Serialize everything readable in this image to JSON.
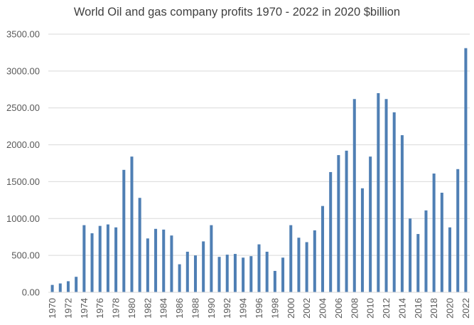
{
  "chart_data": {
    "type": "bar",
    "title": "World Oil and gas company profits 1970 - 2022 in 2020 $billion",
    "xlabel": "",
    "ylabel": "",
    "ylim": [
      0,
      3500
    ],
    "y_ticks": [
      "0.00",
      "500.00",
      "1000.00",
      "1500.00",
      "2000.00",
      "2500.00",
      "3000.00",
      "3500.00"
    ],
    "gridlines": true,
    "bar_color": "#4f7fb4",
    "grid_color": "#d9d9d9",
    "categories": [
      "1970",
      "1971",
      "1972",
      "1973",
      "1974",
      "1975",
      "1976",
      "1977",
      "1978",
      "1979",
      "1980",
      "1981",
      "1982",
      "1983",
      "1984",
      "1985",
      "1986",
      "1987",
      "1988",
      "1989",
      "1990",
      "1991",
      "1992",
      "1993",
      "1994",
      "1995",
      "1996",
      "1997",
      "1998",
      "1999",
      "2000",
      "2001",
      "2002",
      "2003",
      "2004",
      "2005",
      "2006",
      "2007",
      "2008",
      "2009",
      "2010",
      "2011",
      "2012",
      "2013",
      "2014",
      "2015",
      "2016",
      "2017",
      "2018",
      "2019",
      "2020",
      "2021",
      "2022"
    ],
    "tick_labels": [
      "1970",
      "1972",
      "1974",
      "1976",
      "1978",
      "1980",
      "1982",
      "1984",
      "1986",
      "1988",
      "1990",
      "1992",
      "1994",
      "1996",
      "1998",
      "2000",
      "2002",
      "2004",
      "2006",
      "2008",
      "2010",
      "2012",
      "2014",
      "2016",
      "2018",
      "2020",
      "2022"
    ],
    "values": [
      100,
      120,
      150,
      210,
      910,
      800,
      900,
      920,
      880,
      1660,
      1840,
      1280,
      730,
      860,
      850,
      770,
      380,
      550,
      500,
      690,
      910,
      480,
      510,
      520,
      470,
      490,
      650,
      550,
      290,
      470,
      910,
      740,
      680,
      840,
      1170,
      1630,
      1860,
      1920,
      2620,
      1410,
      1840,
      2700,
      2620,
      2440,
      2130,
      1000,
      790,
      1110,
      1610,
      1350,
      880,
      1670,
      3310
    ]
  }
}
